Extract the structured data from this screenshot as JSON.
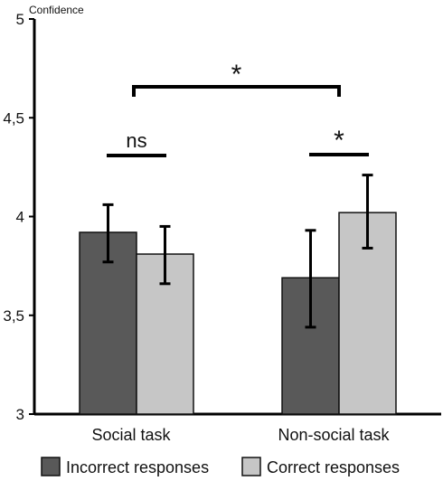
{
  "chart_data": {
    "type": "bar",
    "ylabel": "Confidence",
    "ylim": [
      3,
      5
    ],
    "yticks": [
      {
        "value": 5,
        "label": "5"
      },
      {
        "value": 4.5,
        "label": "4,5"
      },
      {
        "value": 4,
        "label": "4"
      },
      {
        "value": 3.5,
        "label": "3,5"
      },
      {
        "value": 3,
        "label": "3"
      }
    ],
    "categories": [
      "Social task",
      "Non-social task"
    ],
    "series": [
      {
        "name": "Incorrect responses",
        "color": "#595959",
        "values": [
          3.92,
          3.69
        ],
        "error_low": [
          3.77,
          3.44
        ],
        "error_high": [
          4.06,
          3.93
        ]
      },
      {
        "name": "Correct responses",
        "color": "#c6c6c6",
        "values": [
          3.81,
          4.02
        ],
        "error_low": [
          3.66,
          3.84
        ],
        "error_high": [
          3.95,
          4.21
        ]
      }
    ],
    "annotations": [
      {
        "label": "ns",
        "type": "within",
        "category": "Social task"
      },
      {
        "label": "*",
        "type": "within",
        "category": "Non-social task"
      },
      {
        "label": "*",
        "type": "between",
        "from": "Social task",
        "to": "Non-social task"
      }
    ],
    "legend_position": "bottom",
    "grid": false
  }
}
